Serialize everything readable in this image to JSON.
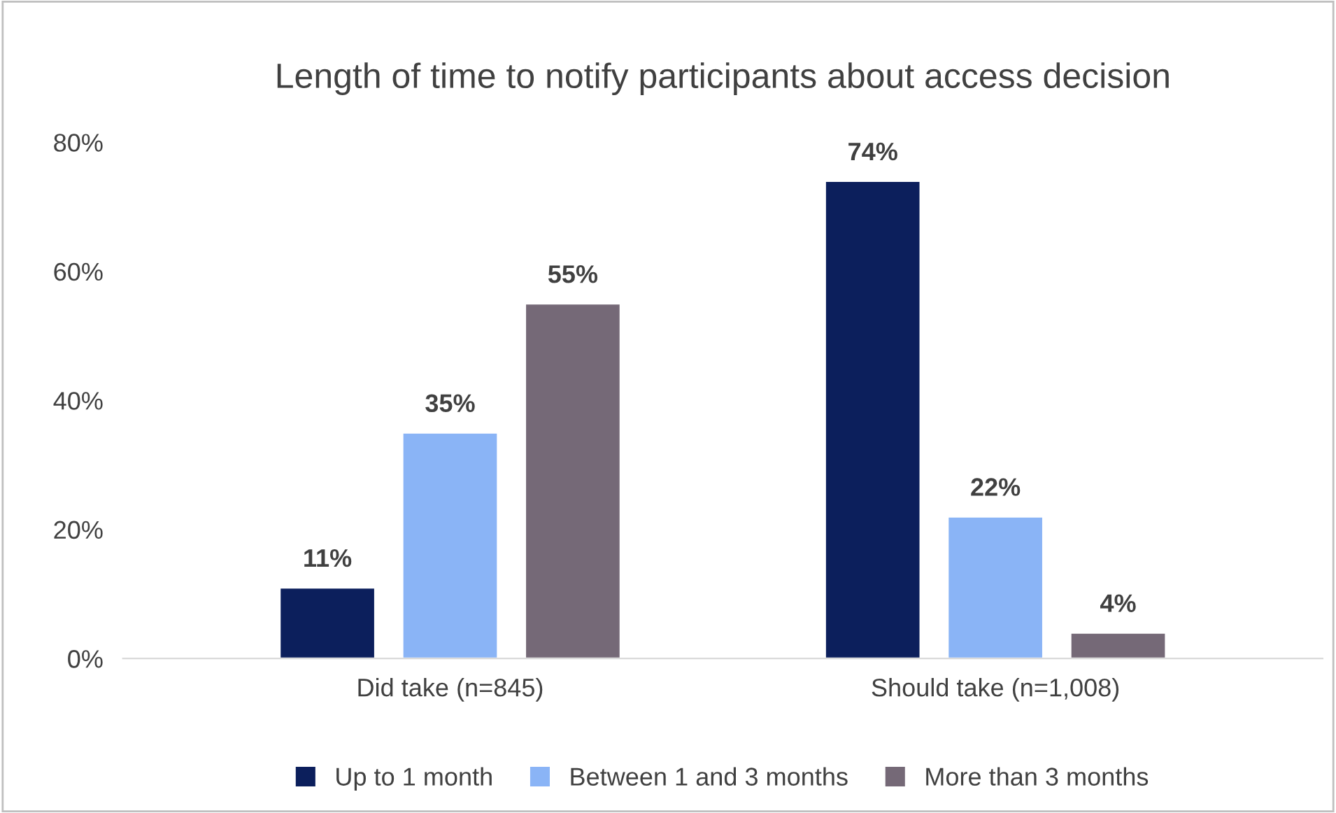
{
  "chart_data": {
    "type": "bar",
    "title": "Length of time to notify participants about access decision",
    "categories": [
      "Did take (n=845)",
      "Should take (n=1,008)"
    ],
    "series": [
      {
        "name": "Up to 1 month",
        "color": "#0c1f5c",
        "values": [
          11,
          74
        ],
        "value_labels": [
          "11%",
          "74%"
        ]
      },
      {
        "name": "Between 1 and 3 months",
        "color": "#8ab4f6",
        "values": [
          35,
          22
        ],
        "value_labels": [
          "35%",
          "22%"
        ]
      },
      {
        "name": "More than 3 months",
        "color": "#756977",
        "values": [
          55,
          4
        ],
        "value_labels": [
          "55%",
          "4%"
        ]
      }
    ],
    "ylim": [
      0,
      80
    ],
    "yticks": [
      {
        "value": 0,
        "label": "0%"
      },
      {
        "value": 20,
        "label": "20%"
      },
      {
        "value": 40,
        "label": "40%"
      },
      {
        "value": 60,
        "label": "60%"
      },
      {
        "value": 80,
        "label": "80%"
      }
    ],
    "grid": false,
    "legend": "bottom"
  }
}
